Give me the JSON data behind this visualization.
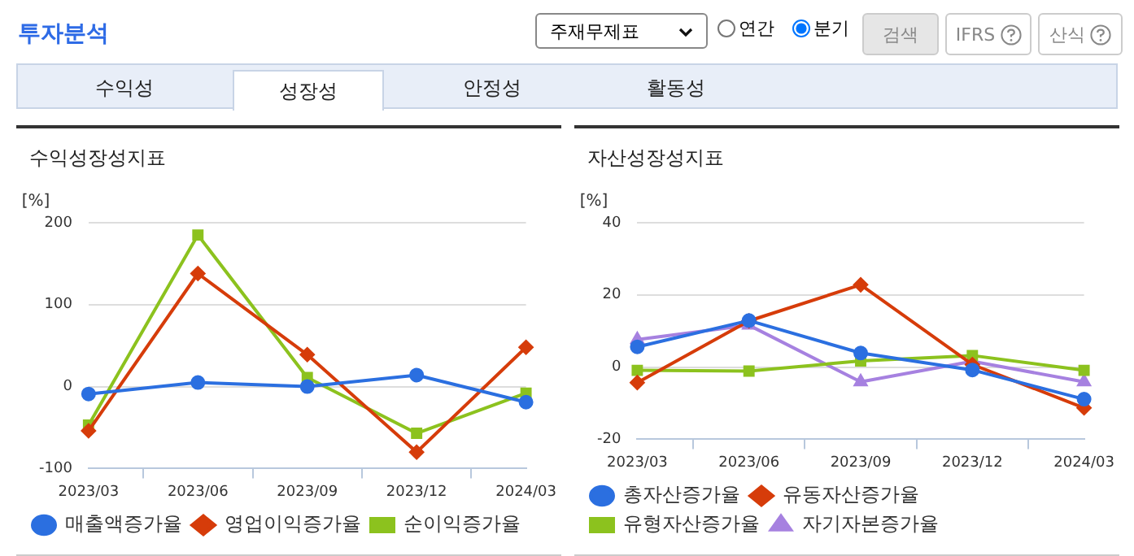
{
  "chart_data": [
    {
      "type": "other",
      "title": "투자분석",
      "annotations": [
        "주재무제표",
        "연간",
        "분기",
        "검색",
        "IFRS",
        "산식",
        "수익성",
        "성장성",
        "안정성",
        "활동성"
      ]
    },
    {
      "type": "line",
      "title": "수익성장성지표",
      "ylabel": "[%]",
      "categories": [
        "2023/03",
        "2023/06",
        "2023/09",
        "2023/12",
        "2024/03"
      ],
      "ylim": [
        -100,
        200
      ],
      "yticks": [
        -100,
        0,
        100,
        200
      ],
      "grid": "y",
      "legend": "bottom",
      "series": [
        {
          "name": "매출액증가율",
          "color": "#2b6fe0",
          "marker": "circle",
          "values": [
            -9,
            5,
            0,
            14,
            -19
          ]
        },
        {
          "name": "영업이익증가율",
          "color": "#d63c0a",
          "marker": "diamond",
          "values": [
            -54,
            138,
            39,
            -80,
            48
          ]
        },
        {
          "name": "순이익증가율",
          "color": "#8cc21e",
          "marker": "square",
          "values": [
            -47,
            185,
            11,
            -57,
            -8
          ]
        }
      ]
    },
    {
      "type": "line",
      "title": "자산성장성지표",
      "ylabel": "[%]",
      "categories": [
        "2023/03",
        "2023/06",
        "2023/09",
        "2023/12",
        "2024/03"
      ],
      "ylim": [
        -20,
        40
      ],
      "yticks": [
        -20,
        0,
        20,
        40
      ],
      "grid": "y",
      "legend": "bottom",
      "series": [
        {
          "name": "총자산증가율",
          "color": "#2b6fe0",
          "marker": "circle",
          "values": [
            5.6,
            12.9,
            3.9,
            -0.8,
            -8.9
          ]
        },
        {
          "name": "유동자산증가율",
          "color": "#d63c0a",
          "marker": "diamond",
          "values": [
            -4.3,
            12.8,
            22.8,
            0.7,
            -11.3
          ]
        },
        {
          "name": "유형자산증가율",
          "color": "#8cc21e",
          "marker": "square",
          "values": [
            -0.9,
            -1.1,
            1.7,
            3.2,
            -0.9
          ]
        },
        {
          "name": "자기자본증가율",
          "color": "#a681e0",
          "marker": "triangle",
          "values": [
            7.6,
            11.6,
            -4.1,
            1.6,
            -4.1
          ]
        }
      ]
    }
  ]
}
